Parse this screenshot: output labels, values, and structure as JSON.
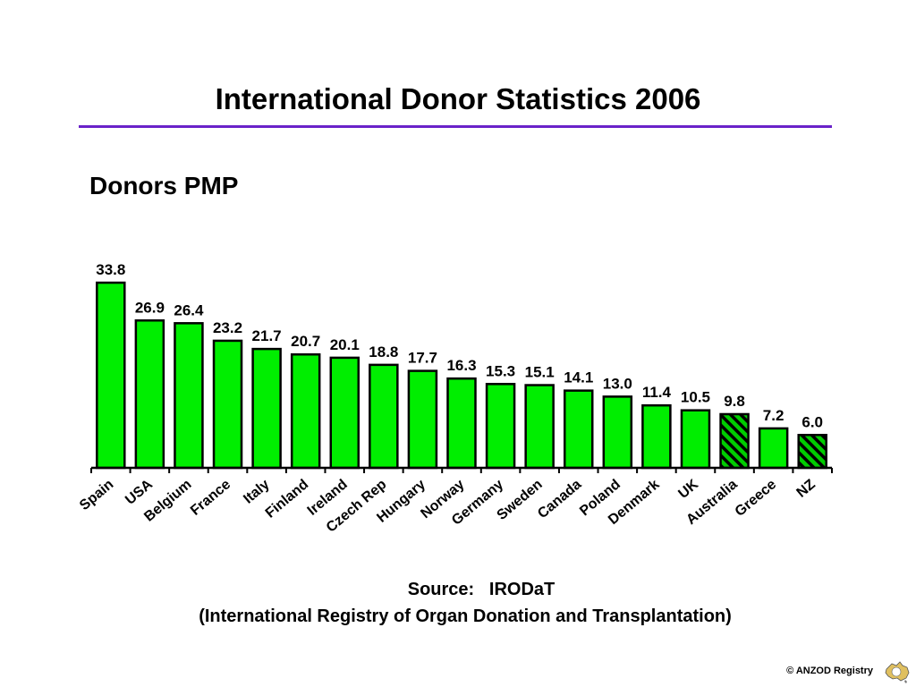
{
  "slide": {
    "title": "International Donor Statistics 2006",
    "subtitle": "Donors PMP",
    "source_line": "Source:   IRODaT",
    "source_full": "(International Registry of Organ Donation and Transplantation)",
    "copyright": "© ANZOD Registry",
    "logo_icon": "australia-map-logo-icon"
  },
  "colors": {
    "bar_fill": "#00ee00",
    "bar_stroke": "#000000",
    "hatch_bar": "#00cc00",
    "title_rule": "#6a22c9"
  },
  "chart_data": {
    "type": "bar",
    "title": "Donors PMP",
    "xlabel": "",
    "ylabel": "",
    "ylim": [
      0,
      34
    ],
    "grid": false,
    "legend": "none",
    "categories": [
      "Spain",
      "USA",
      "Belgium",
      "France",
      "Italy",
      "Finland",
      "Ireland",
      "Czech Rep",
      "Hungary",
      "Norway",
      "Germany",
      "Sweden",
      "Canada",
      "Poland",
      "Denmark",
      "UK",
      "Australia",
      "Greece",
      "NZ"
    ],
    "values": [
      33.8,
      26.9,
      26.4,
      23.2,
      21.7,
      20.7,
      20.1,
      18.8,
      17.7,
      16.3,
      15.3,
      15.1,
      14.1,
      13.0,
      11.4,
      10.5,
      9.8,
      7.2,
      6.0
    ],
    "value_labels": [
      "33.8",
      "26.9",
      "26.4",
      "23.2",
      "21.7",
      "20.7",
      "20.1",
      "18.8",
      "17.7",
      "16.3",
      "15.3",
      "15.1",
      "14.1",
      "13.0",
      "11.4",
      "10.5",
      "9.8",
      "7.2",
      "6.0"
    ],
    "highlighted": [
      "Australia",
      "NZ"
    ]
  }
}
